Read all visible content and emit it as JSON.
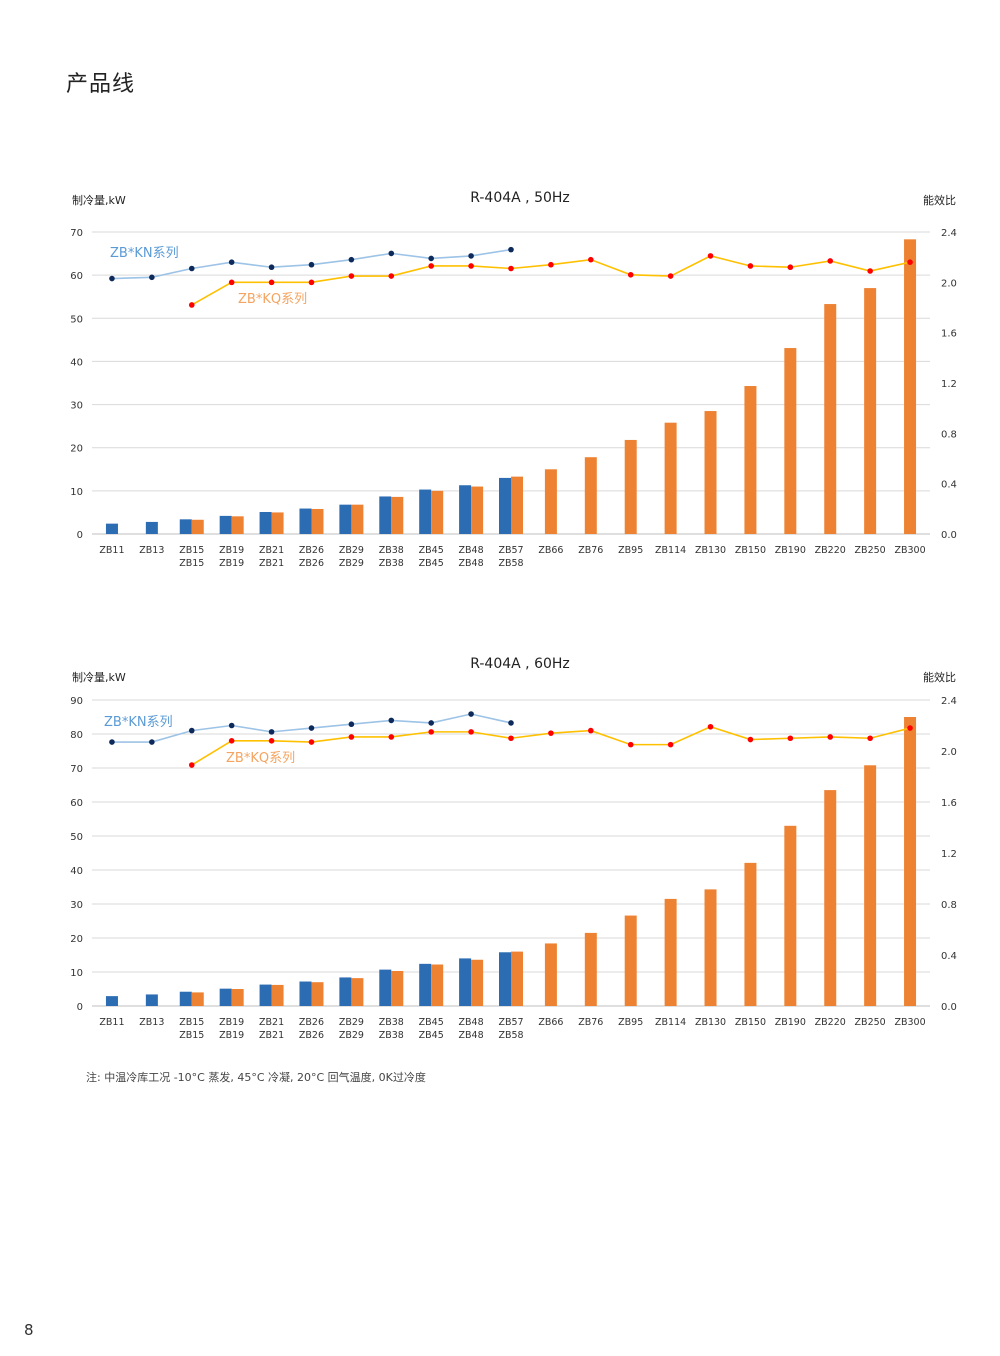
{
  "page": {
    "title": "产品线",
    "note": "注: 中温冷库工况 -10°C 蒸发, 45°C 冷凝, 20°C 回气温度, 0K过冷度",
    "page_number": "8"
  },
  "colors": {
    "kn_bar": "#2b6cb3",
    "kq_bar": "#ee8233",
    "kn_line": "#9dc3e6",
    "kn_marker": "#0d2a5a",
    "kq_line": "#ffc000",
    "kq_marker": "#ff0000",
    "kn_label": "#5b9bd5",
    "kq_label": "#f4a460",
    "grid": "#d9d9d9"
  },
  "chart_data": [
    {
      "type": "bar",
      "title": "R-404A , 50Hz",
      "ylabel": "制冷量,kW",
      "y2label": "能效比",
      "ylim": [
        0,
        70
      ],
      "yticks": [
        "0",
        "10",
        "20",
        "30",
        "40",
        "50",
        "60",
        "70"
      ],
      "y2lim": [
        0,
        2.4
      ],
      "y2ticks": [
        "0.0",
        "0.4",
        "0.8",
        "1.2",
        "1.6",
        "2.0",
        "2.4"
      ],
      "grid": true,
      "categories": [
        {
          "top": "ZB11",
          "bottom": ""
        },
        {
          "top": "ZB13",
          "bottom": ""
        },
        {
          "top": "ZB15",
          "bottom": "ZB15"
        },
        {
          "top": "ZB19",
          "bottom": "ZB19"
        },
        {
          "top": "ZB21",
          "bottom": "ZB21"
        },
        {
          "top": "ZB26",
          "bottom": "ZB26"
        },
        {
          "top": "ZB29",
          "bottom": "ZB29"
        },
        {
          "top": "ZB38",
          "bottom": "ZB38"
        },
        {
          "top": "ZB45",
          "bottom": "ZB45"
        },
        {
          "top": "ZB48",
          "bottom": "ZB48"
        },
        {
          "top": "ZB57",
          "bottom": "ZB58"
        },
        {
          "top": "ZB66",
          "bottom": ""
        },
        {
          "top": "ZB76",
          "bottom": ""
        },
        {
          "top": "ZB95",
          "bottom": ""
        },
        {
          "top": "ZB114",
          "bottom": ""
        },
        {
          "top": "ZB130",
          "bottom": ""
        },
        {
          "top": "ZB150",
          "bottom": ""
        },
        {
          "top": "ZB190",
          "bottom": ""
        },
        {
          "top": "ZB220",
          "bottom": ""
        },
        {
          "top": "ZB250",
          "bottom": ""
        },
        {
          "top": "ZB300",
          "bottom": ""
        }
      ],
      "series": [
        {
          "name": "ZB*KN系列",
          "kind": "bar",
          "axis": "left",
          "values": [
            2.4,
            2.8,
            3.4,
            4.2,
            5.1,
            5.9,
            6.8,
            8.7,
            10.3,
            11.3,
            13.0,
            null,
            null,
            null,
            null,
            null,
            null,
            null,
            null,
            null,
            null
          ]
        },
        {
          "name": "ZB*KQ系列",
          "kind": "bar",
          "axis": "left",
          "values": [
            null,
            null,
            3.3,
            4.1,
            5.0,
            5.8,
            6.8,
            8.6,
            10.0,
            11.0,
            13.3,
            15.0,
            17.8,
            21.8,
            25.8,
            28.5,
            34.3,
            43.1,
            53.3,
            57.0,
            68.3
          ]
        },
        {
          "name": "ZB*KN系列",
          "kind": "line",
          "axis": "right",
          "values": [
            2.03,
            2.04,
            2.11,
            2.16,
            2.12,
            2.14,
            2.18,
            2.23,
            2.19,
            2.21,
            2.26,
            null,
            null,
            null,
            null,
            null,
            null,
            null,
            null,
            null,
            null
          ]
        },
        {
          "name": "ZB*KQ系列",
          "kind": "line",
          "axis": "right",
          "values": [
            null,
            null,
            1.82,
            2.0,
            2.0,
            2.0,
            2.05,
            2.05,
            2.13,
            2.13,
            2.11,
            2.14,
            2.18,
            2.06,
            2.05,
            2.21,
            2.13,
            2.12,
            2.17,
            2.09,
            2.16
          ]
        }
      ],
      "labels": [
        {
          "text": "ZB*KN系列",
          "series": 0
        },
        {
          "text": "ZB*KQ系列",
          "series": 1
        }
      ]
    },
    {
      "type": "bar",
      "title": "R-404A , 60Hz",
      "ylabel": "制冷量,kW",
      "y2label": "能效比",
      "ylim": [
        0,
        90
      ],
      "yticks": [
        "0",
        "10",
        "20",
        "30",
        "40",
        "50",
        "60",
        "70",
        "80",
        "90"
      ],
      "y2lim": [
        0,
        2.4
      ],
      "y2ticks": [
        "0.0",
        "0.4",
        "0.8",
        "1.2",
        "1.6",
        "2.0",
        "2.4"
      ],
      "grid": true,
      "categories": [
        {
          "top": "ZB11",
          "bottom": ""
        },
        {
          "top": "ZB13",
          "bottom": ""
        },
        {
          "top": "ZB15",
          "bottom": "ZB15"
        },
        {
          "top": "ZB19",
          "bottom": "ZB19"
        },
        {
          "top": "ZB21",
          "bottom": "ZB21"
        },
        {
          "top": "ZB26",
          "bottom": "ZB26"
        },
        {
          "top": "ZB29",
          "bottom": "ZB29"
        },
        {
          "top": "ZB38",
          "bottom": "ZB38"
        },
        {
          "top": "ZB45",
          "bottom": "ZB45"
        },
        {
          "top": "ZB48",
          "bottom": "ZB48"
        },
        {
          "top": "ZB57",
          "bottom": "ZB58"
        },
        {
          "top": "ZB66",
          "bottom": ""
        },
        {
          "top": "ZB76",
          "bottom": ""
        },
        {
          "top": "ZB95",
          "bottom": ""
        },
        {
          "top": "ZB114",
          "bottom": ""
        },
        {
          "top": "ZB130",
          "bottom": ""
        },
        {
          "top": "ZB150",
          "bottom": ""
        },
        {
          "top": "ZB190",
          "bottom": ""
        },
        {
          "top": "ZB220",
          "bottom": ""
        },
        {
          "top": "ZB250",
          "bottom": ""
        },
        {
          "top": "ZB300",
          "bottom": ""
        }
      ],
      "series": [
        {
          "name": "ZB*KN系列",
          "kind": "bar",
          "axis": "left",
          "values": [
            2.9,
            3.4,
            4.2,
            5.1,
            6.3,
            7.2,
            8.4,
            10.7,
            12.4,
            14.0,
            15.8,
            null,
            null,
            null,
            null,
            null,
            null,
            null,
            null,
            null,
            null
          ]
        },
        {
          "name": "ZB*KQ系列",
          "kind": "bar",
          "axis": "left",
          "values": [
            null,
            null,
            4.0,
            5.0,
            6.2,
            7.0,
            8.2,
            10.3,
            12.2,
            13.6,
            16.0,
            18.4,
            21.5,
            26.6,
            31.5,
            34.3,
            42.1,
            53.0,
            63.5,
            70.8,
            85.0
          ]
        },
        {
          "name": "ZB*KN系列",
          "kind": "line",
          "axis": "right",
          "values": [
            2.07,
            2.07,
            2.16,
            2.2,
            2.15,
            2.18,
            2.21,
            2.24,
            2.22,
            2.29,
            2.22,
            null,
            null,
            null,
            null,
            null,
            null,
            null,
            null,
            null,
            null
          ]
        },
        {
          "name": "ZB*KQ系列",
          "kind": "line",
          "axis": "right",
          "values": [
            null,
            null,
            1.89,
            2.08,
            2.08,
            2.07,
            2.11,
            2.11,
            2.15,
            2.15,
            2.1,
            2.14,
            2.16,
            2.05,
            2.05,
            2.19,
            2.09,
            2.1,
            2.11,
            2.1,
            2.18
          ]
        }
      ],
      "labels": [
        {
          "text": "ZB*KN系列",
          "series": 0
        },
        {
          "text": "ZB*KQ系列",
          "series": 1
        }
      ]
    }
  ]
}
